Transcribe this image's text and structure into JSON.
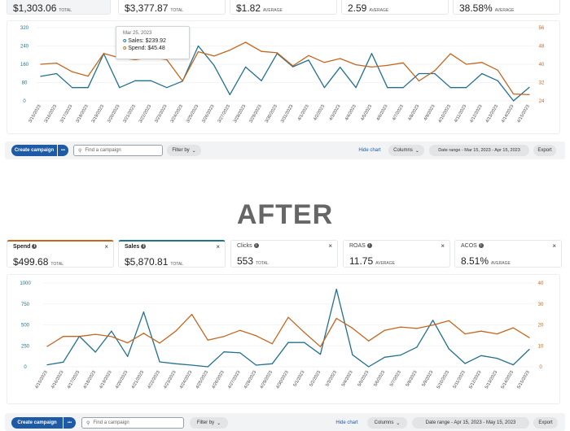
{
  "before": {
    "cards": [
      {
        "value": "$1,303.06",
        "unit": "TOTAL"
      },
      {
        "value": "$3,377.87",
        "unit": "TOTAL"
      },
      {
        "value": "$1.82",
        "unit": "AVERAGE"
      },
      {
        "value": "2.59",
        "unit": "AVERAGE"
      },
      {
        "value": "38.58%",
        "unit": "AVERAGE"
      }
    ],
    "tooltip": {
      "date": "Mar 25, 2023",
      "sales": "Sales: $239.92",
      "spend": "Spend: $45.48",
      "marker_icon": "circle"
    },
    "toolbar": {
      "create": "Create campaign",
      "more": "•••",
      "search_placeholder": "Find a campaign",
      "filter": "Filter by",
      "hide_chart": "Hide chart",
      "columns": "Columns",
      "date_range": "Date range - Mar 15, 2023 - Apr 15, 2023",
      "export": "Export"
    }
  },
  "after_label": "AFTER",
  "after": {
    "cards": [
      {
        "label": "Spend",
        "value": "$499.68",
        "unit": "TOTAL",
        "selected": true,
        "color": "#c4661f"
      },
      {
        "label": "Sales",
        "value": "$5,870.81",
        "unit": "TOTAL",
        "selected": true,
        "color": "#23708f"
      },
      {
        "label": "Clicks",
        "value": "553",
        "unit": "TOTAL",
        "selected": false
      },
      {
        "label": "ROAS",
        "value": "11.75",
        "unit": "AVERAGE",
        "selected": false
      },
      {
        "label": "ACOS",
        "value": "8.51%",
        "unit": "AVERAGE",
        "selected": false
      }
    ],
    "close_icon": "×",
    "info_icon": "i",
    "toolbar": {
      "create": "Create campaign",
      "more": "•••",
      "search_placeholder": "Find a campaign",
      "filter": "Filter by",
      "hide_chart": "Hide chart",
      "columns": "Columns",
      "date_range": "Date range - Apr 15, 2023 - May 15, 2023",
      "export": "Export"
    }
  },
  "colors": {
    "sales": "#23708f",
    "spend": "#c4661f",
    "primary": "#1f5aa6"
  },
  "chart_data": [
    {
      "type": "line",
      "x": [
        "3/15/2023",
        "3/16/2023",
        "3/17/2023",
        "3/18/2023",
        "3/19/2023",
        "3/20/2023",
        "3/21/2023",
        "3/22/2023",
        "3/23/2023",
        "3/24/2023",
        "3/25/2023",
        "3/26/2023",
        "3/27/2023",
        "3/28/2023",
        "3/29/2023",
        "3/30/2023",
        "3/31/2023",
        "4/1/2023",
        "4/2/2023",
        "4/3/2023",
        "4/4/2023",
        "4/5/2023",
        "4/6/2023",
        "4/7/2023",
        "4/8/2023",
        "4/9/2023",
        "4/10/2023",
        "4/11/2023",
        "4/12/2023",
        "4/13/2023",
        "4/14/2023",
        "4/15/2023"
      ],
      "left_ticks": [
        0,
        80,
        160,
        240,
        320
      ],
      "ylim_left": [
        0,
        320
      ],
      "right_ticks": [
        24,
        32,
        40,
        48,
        56
      ],
      "ylim_right": [
        24,
        56
      ],
      "grid": true,
      "series": [
        {
          "name": "Sales",
          "axis": "left",
          "color": "#23708f",
          "values": [
            107,
            119,
            58,
            58,
            206,
            58,
            88,
            88,
            58,
            86,
            239.92,
            155,
            27,
            148,
            88,
            207,
            149,
            178,
            58,
            147,
            58,
            207,
            58,
            58,
            119,
            119,
            58,
            58,
            119,
            88,
            0,
            59
          ]
        },
        {
          "name": "Spend",
          "axis": "right",
          "color": "#c4661f",
          "values": [
            40,
            40.5,
            36.7,
            34.8,
            44.7,
            42.8,
            42,
            43,
            42,
            32.7,
            45.48,
            43.6,
            46.2,
            49.6,
            45.6,
            45,
            39.3,
            43.8,
            40.8,
            42.5,
            39.8,
            38.8,
            39.5,
            40.6,
            32.7,
            37.2,
            44.6,
            40,
            40.8,
            37.4,
            27,
            26.7
          ]
        }
      ]
    },
    {
      "type": "line",
      "x": [
        "4/15/2023",
        "4/16/2023",
        "4/17/2023",
        "4/18/2023",
        "4/19/2023",
        "4/20/2023",
        "4/21/2023",
        "4/22/2023",
        "4/23/2023",
        "4/24/2023",
        "4/25/2023",
        "4/26/2023",
        "4/27/2023",
        "4/28/2023",
        "4/29/2023",
        "4/30/2023",
        "5/1/2023",
        "5/2/2023",
        "5/3/2023",
        "5/4/2023",
        "5/5/2023",
        "5/6/2023",
        "5/7/2023",
        "5/8/2023",
        "5/9/2023",
        "5/10/2023",
        "5/11/2023",
        "5/12/2023",
        "5/13/2023",
        "5/14/2023",
        "5/15/2023"
      ],
      "left_ticks": [
        0,
        250,
        500,
        750,
        1000
      ],
      "ylim_left": [
        0,
        1000
      ],
      "right_ticks": [
        0,
        10,
        20,
        30,
        40
      ],
      "ylim_right": [
        0,
        40
      ],
      "grid": true,
      "series": [
        {
          "name": "Sales",
          "axis": "left",
          "color": "#23708f",
          "values": [
            23,
            55,
            364,
            175,
            425,
            123,
            653,
            58,
            36,
            19,
            0,
            178,
            166,
            19,
            36,
            289,
            289,
            149,
            925,
            143,
            0,
            114,
            140,
            234,
            555,
            214,
            39,
            133,
            101,
            23,
            208
          ]
        },
        {
          "name": "Spend",
          "axis": "right",
          "color": "#c4661f",
          "values": [
            9.7,
            14.5,
            14.5,
            15.5,
            14.4,
            11.4,
            16,
            11.3,
            17,
            25,
            12.7,
            14.5,
            17.4,
            14.8,
            11,
            23.6,
            16.4,
            9.6,
            23.1,
            18.4,
            12.3,
            17.4,
            19,
            18.3,
            19.9,
            22,
            15.7,
            17,
            15.7,
            18.6,
            13.9
          ]
        }
      ]
    }
  ]
}
